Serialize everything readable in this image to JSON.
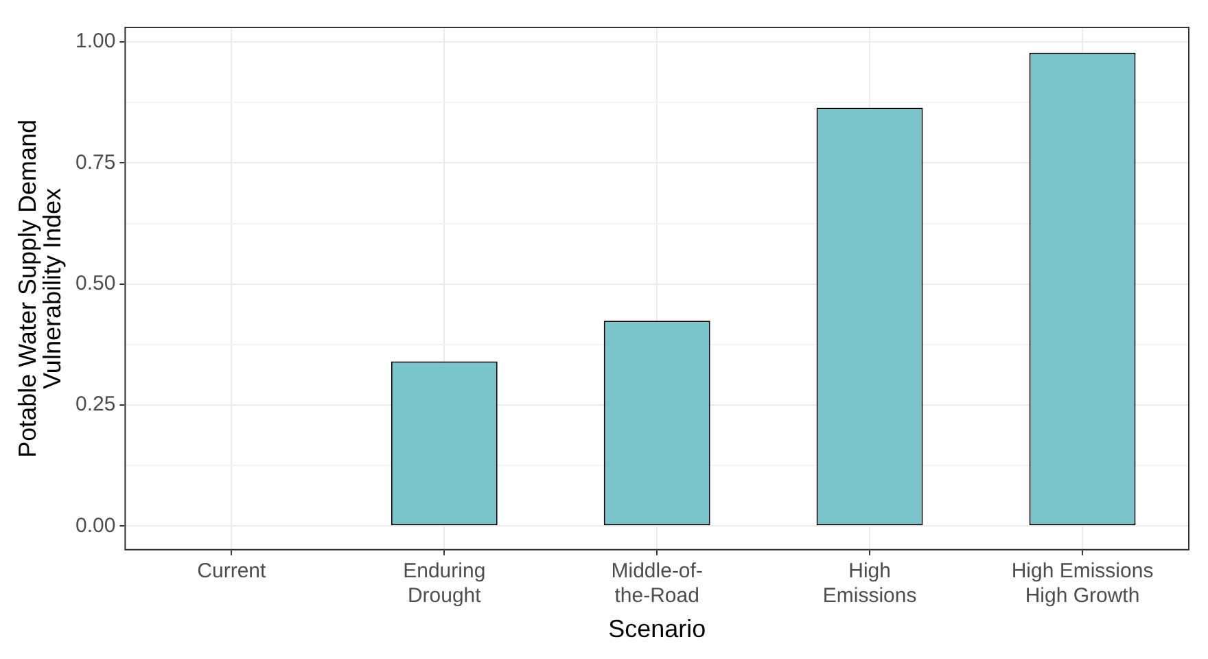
{
  "chart_data": {
    "type": "bar",
    "xlabel": "Scenario",
    "ylabel": "Potable Water Supply Demand\nVulnerability Index",
    "categories": [
      "Current",
      "Enduring\nDrought",
      "Middle-of-\nthe-Road",
      "High\nEmissions",
      "High Emissions\nHigh Growth"
    ],
    "values": [
      0,
      0.34,
      0.424,
      0.864,
      0.978
    ],
    "color": "#7bc4cc",
    "ylim": [
      -0.049,
      1.03
    ],
    "yticks": [
      {
        "value": 0,
        "label": "0.00"
      },
      {
        "value": 0.125,
        "label": null
      },
      {
        "value": 0.25,
        "label": "0.25"
      },
      {
        "value": 0.375,
        "label": null
      },
      {
        "value": 0.5,
        "label": "0.50"
      },
      {
        "value": 0.625,
        "label": null
      },
      {
        "value": 0.75,
        "label": "0.75"
      },
      {
        "value": 0.875,
        "label": null
      },
      {
        "value": 1,
        "label": "1.00"
      }
    ],
    "grid": true
  }
}
